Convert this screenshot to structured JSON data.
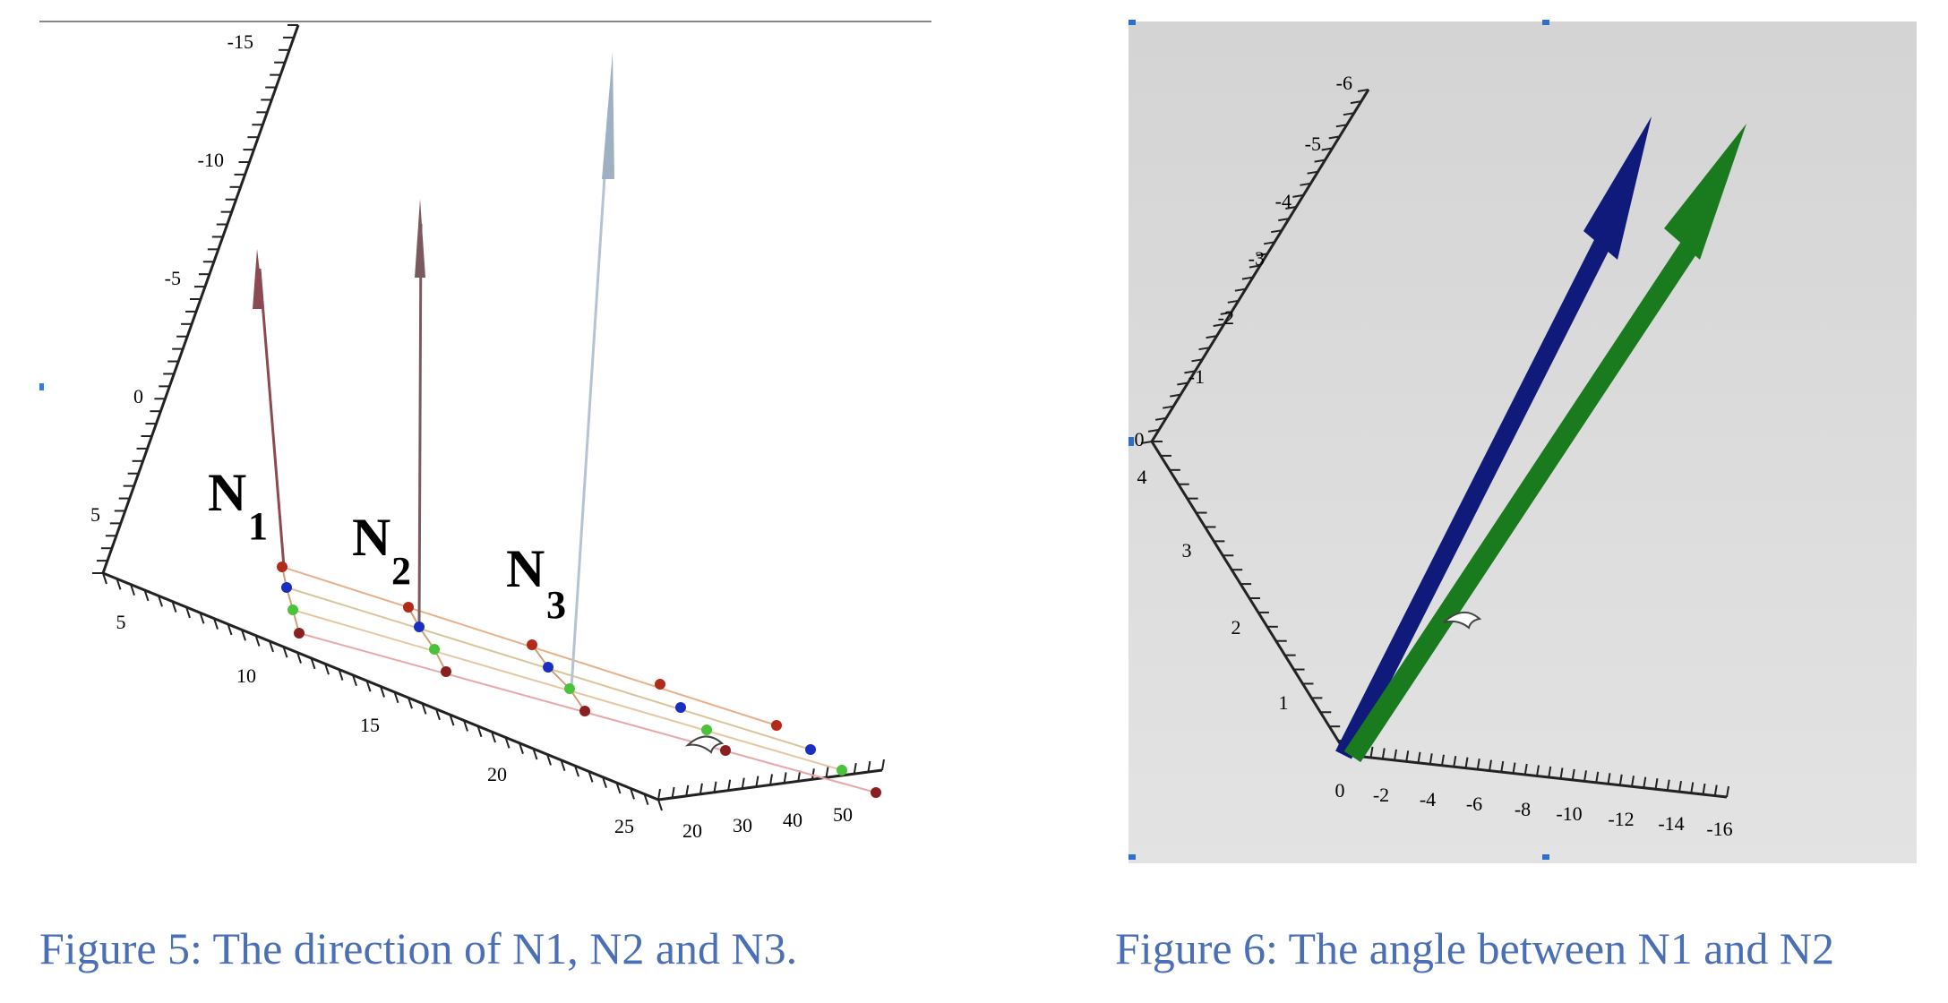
{
  "figure5": {
    "caption": "Figure 5: The direction of N1, N2 and N3.",
    "vertical_axis_ticks": [
      "-15",
      "-10",
      "-5",
      "0",
      "5"
    ],
    "depth_axis_ticks": [
      "5",
      "10",
      "15",
      "20",
      "25"
    ],
    "horizontal_axis_ticks": [
      "20",
      "30",
      "40",
      "50"
    ],
    "vector_labels": [
      {
        "letter": "N",
        "sub": "1"
      },
      {
        "letter": "N",
        "sub": "2"
      },
      {
        "letter": "N",
        "sub": "3"
      }
    ],
    "colors": {
      "n1": "#8b4a52",
      "n2": "#7a5a5e",
      "n3": "#9fb0c4",
      "red": "#b22a1a",
      "blue": "#1a2fbf",
      "green": "#4ac23a",
      "darkred": "#8a1f1f"
    }
  },
  "figure6": {
    "caption": "Figure 6: The angle between N1 and N2",
    "vertical_axis_ticks": [
      "-6",
      "-5",
      "-4",
      "-3",
      "-2",
      "-1",
      "0"
    ],
    "left_axis_ticks": [
      "4",
      "3",
      "2",
      "1"
    ],
    "bottom_axis_ticks": [
      "0",
      "-2",
      "-4",
      "-6",
      "-8",
      "-10",
      "-12",
      "-14",
      "-16"
    ],
    "colors": {
      "background": "#d7d7d7",
      "n1_arrow": "#0f1a7a",
      "n2_arrow": "#1a7a1e"
    }
  }
}
